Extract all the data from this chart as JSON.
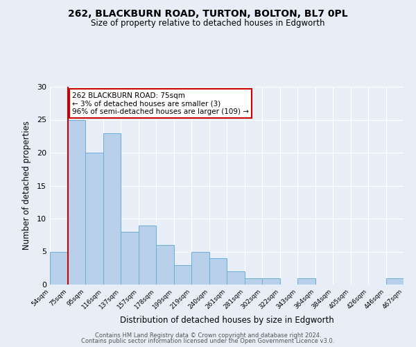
{
  "title1": "262, BLACKBURN ROAD, TURTON, BOLTON, BL7 0PL",
  "title2": "Size of property relative to detached houses in Edgworth",
  "xlabel": "Distribution of detached houses by size in Edgworth",
  "ylabel": "Number of detached properties",
  "bin_labels": [
    "54sqm",
    "75sqm",
    "95sqm",
    "116sqm",
    "137sqm",
    "157sqm",
    "178sqm",
    "199sqm",
    "219sqm",
    "240sqm",
    "261sqm",
    "281sqm",
    "302sqm",
    "322sqm",
    "343sqm",
    "364sqm",
    "384sqm",
    "405sqm",
    "426sqm",
    "446sqm",
    "467sqm"
  ],
  "bar_values": [
    5,
    25,
    20,
    23,
    8,
    9,
    6,
    3,
    5,
    4,
    2,
    1,
    1,
    0,
    1,
    0,
    0,
    0,
    0,
    1
  ],
  "bar_color": "#b8d0ea",
  "bar_edge_color": "#6aaed6",
  "annotation_text": "262 BLACKBURN ROAD: 75sqm\n← 3% of detached houses are smaller (3)\n96% of semi-detached houses are larger (109) →",
  "annotation_box_color": "#ffffff",
  "annotation_box_edge_color": "#cc0000",
  "red_line_color": "#cc0000",
  "ylim": [
    0,
    30
  ],
  "yticks": [
    0,
    5,
    10,
    15,
    20,
    25,
    30
  ],
  "footer1": "Contains HM Land Registry data © Crown copyright and database right 2024.",
  "footer2": "Contains public sector information licensed under the Open Government Licence v3.0.",
  "bg_color": "#e8eef8",
  "plot_bg_color": "#e8eef8",
  "grid_color": "#ffffff"
}
